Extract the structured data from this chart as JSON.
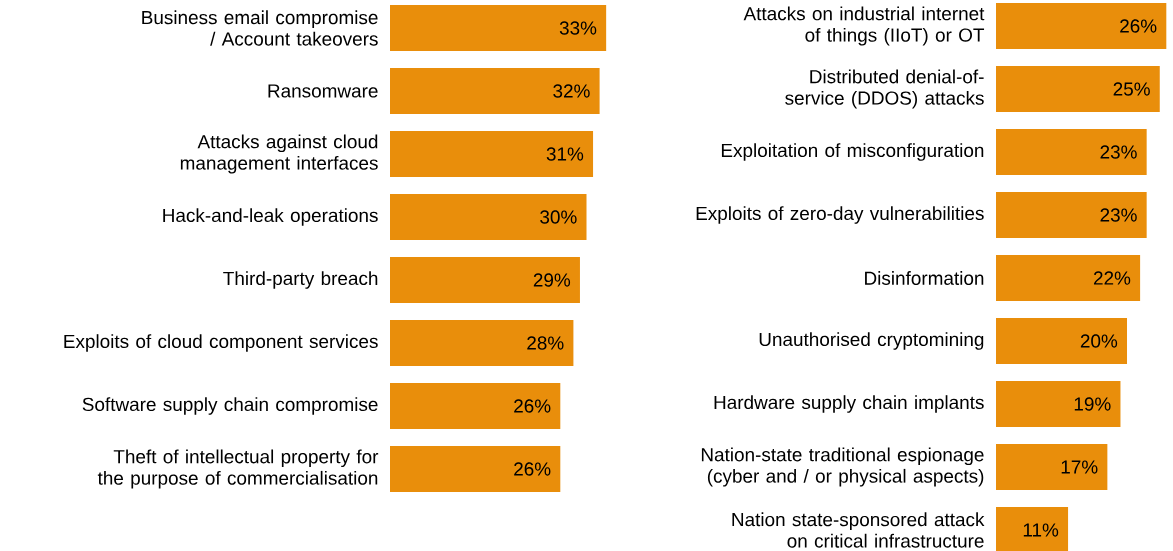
{
  "chart_data": [
    {
      "type": "bar",
      "orientation": "horizontal",
      "color": "#e98e0b",
      "categories": [
        "Business email compromise / Account takeovers",
        "Ransomware",
        "Attacks against cloud management interfaces",
        "Hack-and-leak operations",
        "Third-party breach",
        "Exploits of cloud component services",
        "Software supply chain compromise",
        "Theft of intellectual property for the purpose of commercialisation"
      ],
      "values": [
        33,
        32,
        31,
        30,
        29,
        28,
        26,
        26
      ],
      "value_labels": [
        "33%",
        "32%",
        "31%",
        "30%",
        "29%",
        "28%",
        "26%",
        "26%"
      ]
    },
    {
      "type": "bar",
      "orientation": "horizontal",
      "color": "#e98e0b",
      "categories": [
        "Attacks on industrial internet of things (IIoT) or OT",
        "Distributed denial-of-service (DDOS) attacks",
        "Exploitation of misconfiguration",
        "Exploits of zero-day vulnerabilities",
        "Disinformation",
        "Unauthorised cryptomining",
        "Hardware supply chain implants",
        "Nation-state traditional espionage (cyber and / or physical aspects)",
        "Nation state-sponsored attack on critical infrastructure"
      ],
      "values": [
        26,
        25,
        23,
        23,
        22,
        20,
        19,
        17,
        11
      ],
      "value_labels": [
        "26%",
        "25%",
        "23%",
        "23%",
        "22%",
        "20%",
        "19%",
        "17%",
        "11%"
      ]
    }
  ]
}
